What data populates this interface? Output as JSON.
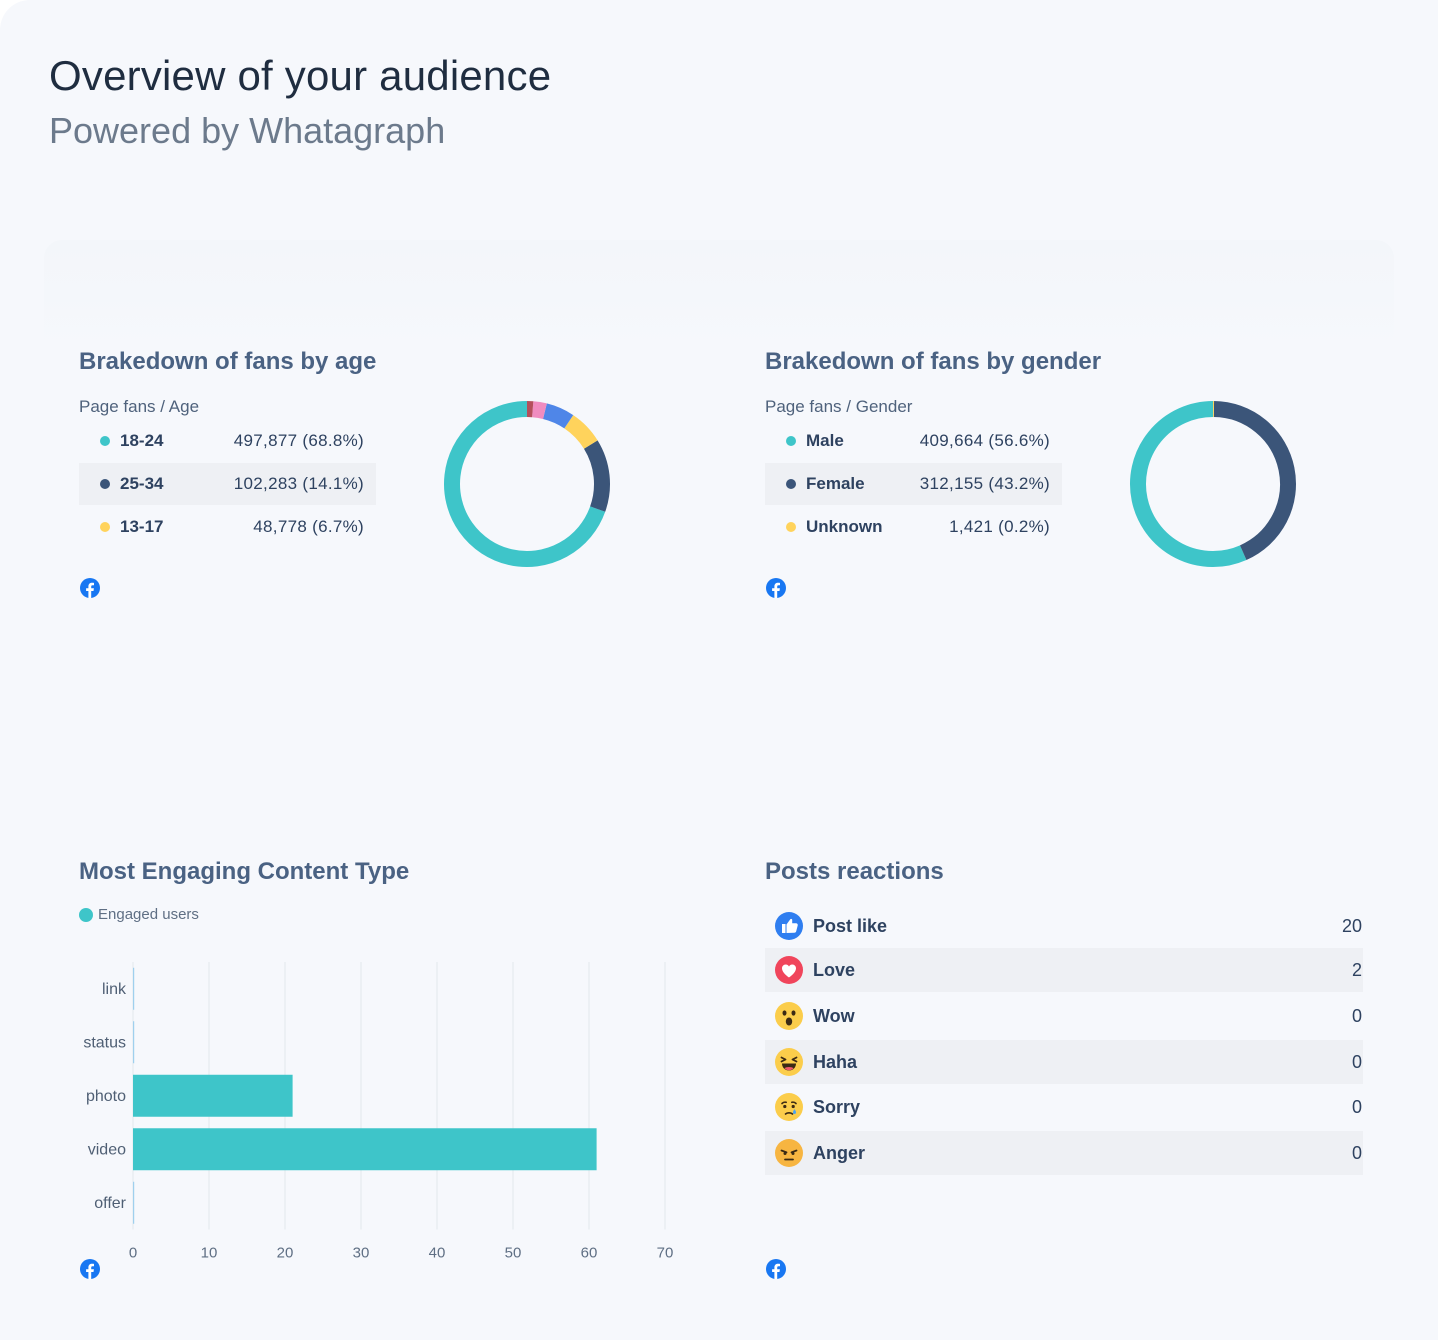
{
  "header": {
    "title": "Overview of your audience",
    "subtitle": "Powered by Whatagraph"
  },
  "age_card": {
    "title": "Brakedown of fans by age",
    "subtitle": "Page fans / Age",
    "icon": "facebook-icon"
  },
  "gender_card": {
    "title": "Brakedown of fans by gender",
    "subtitle": "Page fans / Gender",
    "icon": "facebook-icon"
  },
  "content_card": {
    "title": "Most Engaging Content Type",
    "icon": "facebook-icon"
  },
  "reactions_card": {
    "title": "Posts reactions",
    "icon": "facebook-icon",
    "rows": [
      {
        "name": "Post like",
        "value": "20",
        "icon": "like-icon"
      },
      {
        "name": "Love",
        "value": "2",
        "icon": "love-icon"
      },
      {
        "name": "Wow",
        "value": "0",
        "icon": "wow-icon"
      },
      {
        "name": "Haha",
        "value": "0",
        "icon": "haha-icon"
      },
      {
        "name": "Sorry",
        "value": "0",
        "icon": "sorry-icon"
      },
      {
        "name": "Anger",
        "value": "0",
        "icon": "anger-icon"
      }
    ]
  },
  "chart_data": [
    {
      "type": "pie",
      "style": "donut",
      "title": "Brakedown of fans by age",
      "subtitle": "Page fans / Age",
      "legend": [
        {
          "label": "18-24",
          "value": 497877,
          "display": "497,877",
          "pct": "(68.8%)",
          "color": "#3ec5c9"
        },
        {
          "label": "25-34",
          "value": 102283,
          "display": "102,283",
          "pct": "(14.1%)",
          "color": "#3b5579"
        },
        {
          "label": "13-17",
          "value": 48778,
          "display": "48,778",
          "pct": "(6.7%)",
          "color": "#ffd35c"
        }
      ],
      "slices": [
        {
          "label": "18-24",
          "pct": 68.8,
          "color": "#3ec5c9"
        },
        {
          "label": "25-34",
          "pct": 14.1,
          "color": "#3b5579"
        },
        {
          "label": "13-17",
          "pct": 6.7,
          "color": "#ffd35c"
        },
        {
          "label": "",
          "pct": 5.5,
          "color": "#4f86e8"
        },
        {
          "label": "",
          "pct": 2.6,
          "color": "#f08cc0"
        },
        {
          "label": "",
          "pct": 1.2,
          "color": "#b44f5c"
        }
      ]
    },
    {
      "type": "pie",
      "style": "donut",
      "title": "Brakedown of fans by gender",
      "subtitle": "Page fans / Gender",
      "legend": [
        {
          "label": "Male",
          "value": 409664,
          "display": "409,664",
          "pct": "(56.6%)",
          "color": "#3ec5c9"
        },
        {
          "label": "Female",
          "value": 312155,
          "display": "312,155",
          "pct": "(43.2%)",
          "color": "#3b5579"
        },
        {
          "label": "Unknown",
          "value": 1421,
          "display": "1,421",
          "pct": "(0.2%)",
          "color": "#ffd35c"
        }
      ],
      "slices": [
        {
          "label": "Male",
          "pct": 56.6,
          "color": "#3ec5c9"
        },
        {
          "label": "Female",
          "pct": 43.2,
          "color": "#3b5579"
        },
        {
          "label": "Unknown",
          "pct": 0.2,
          "color": "#ffd35c"
        }
      ]
    },
    {
      "type": "bar",
      "orientation": "horizontal",
      "title": "Most Engaging Content Type",
      "categories": [
        "link",
        "status",
        "photo",
        "video",
        "offer"
      ],
      "series": [
        {
          "name": "Engaged users",
          "values": [
            0,
            0,
            21,
            61,
            0
          ],
          "color": "#3ec5c9"
        }
      ],
      "xlim": [
        0,
        70
      ],
      "xticks": [
        0,
        10,
        20,
        30,
        40,
        50,
        60,
        70
      ],
      "grid": true
    }
  ]
}
